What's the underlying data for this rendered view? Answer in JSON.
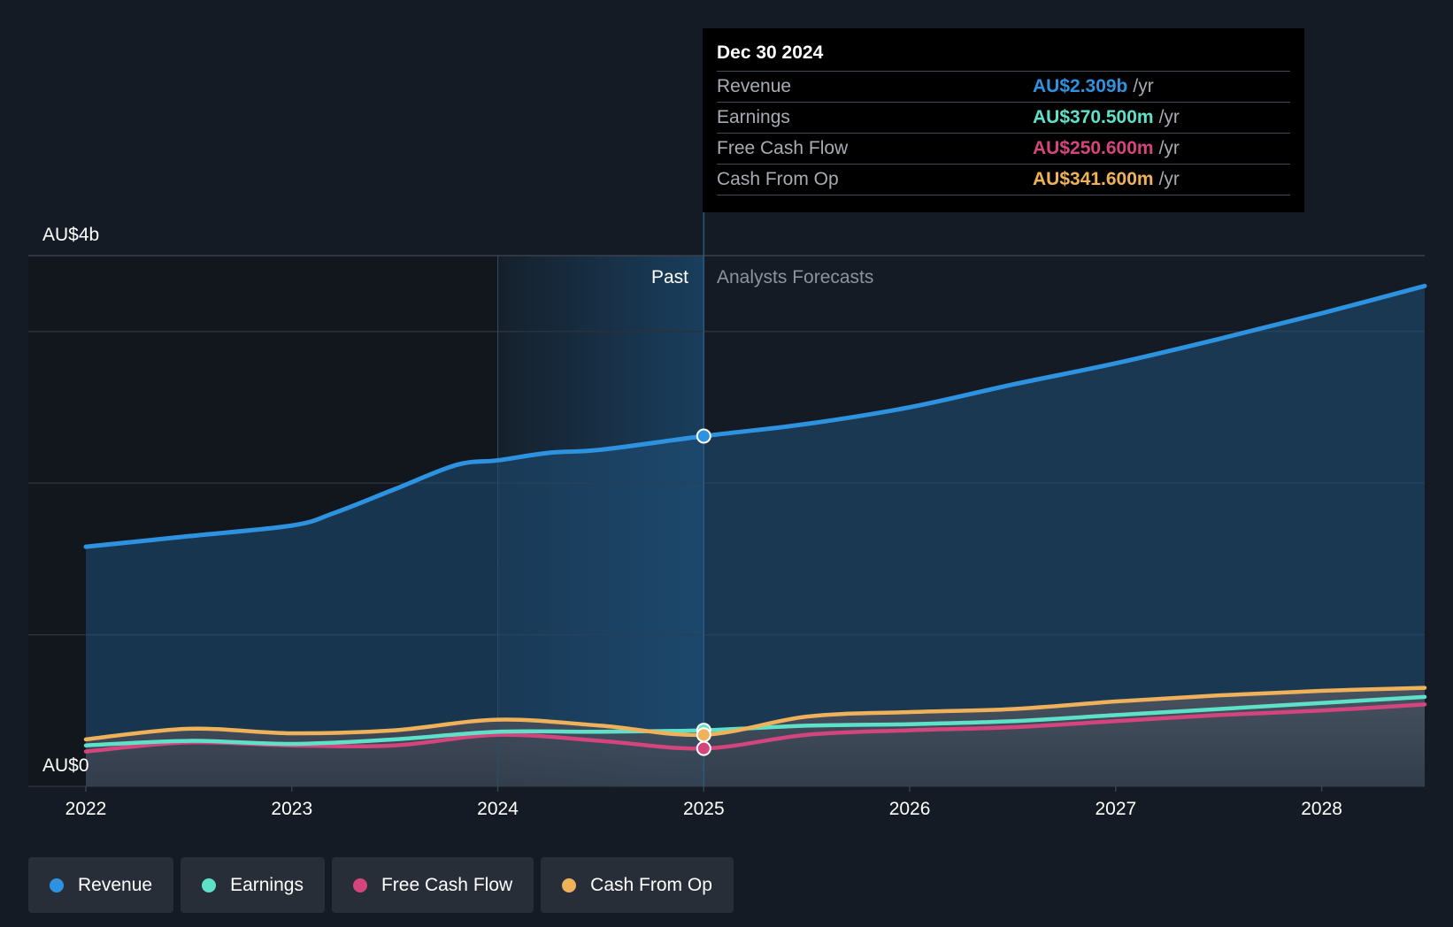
{
  "colors": {
    "revenue": "#2d93e0",
    "earnings": "#5fe1c9",
    "free_cash_flow": "#d3457c",
    "cash_from_op": "#efb25a"
  },
  "chart_data": {
    "type": "line",
    "x_label_ticks": [
      "2022",
      "2023",
      "2024",
      "2025",
      "2026",
      "2027",
      "2028"
    ],
    "y_axis_labels": [
      "AU$4b",
      "AU$0"
    ],
    "ylim": [
      0,
      3.5
    ],
    "xlim": [
      2022.0,
      2028.5
    ],
    "past_label": "Past",
    "forecast_label": "Analysts Forecasts",
    "divider_x": 2025.0,
    "series": [
      {
        "name": "Revenue",
        "key": "revenue",
        "x": [
          2022.0,
          2022.5,
          2023.0,
          2023.2,
          2023.5,
          2023.8,
          2024.0,
          2024.25,
          2024.5,
          2025.0,
          2025.5,
          2026.0,
          2026.5,
          2027.0,
          2027.5,
          2028.0,
          2028.5
        ],
        "values": [
          1.58,
          1.65,
          1.72,
          1.8,
          1.96,
          2.12,
          2.15,
          2.2,
          2.22,
          2.31,
          2.39,
          2.5,
          2.65,
          2.79,
          2.95,
          3.12,
          3.3
        ]
      },
      {
        "name": "Earnings",
        "key": "earnings",
        "x": [
          2022.0,
          2022.5,
          2023.0,
          2023.5,
          2024.0,
          2024.5,
          2025.0,
          2025.5,
          2026.0,
          2026.5,
          2027.0,
          2027.5,
          2028.0,
          2028.5
        ],
        "values": [
          0.27,
          0.3,
          0.28,
          0.31,
          0.36,
          0.36,
          0.37,
          0.4,
          0.41,
          0.43,
          0.47,
          0.51,
          0.55,
          0.59
        ]
      },
      {
        "name": "Free Cash Flow",
        "key": "free_cash_flow",
        "x": [
          2022.0,
          2022.5,
          2023.0,
          2023.5,
          2024.0,
          2024.5,
          2025.0,
          2025.5,
          2026.0,
          2026.5,
          2027.0,
          2027.5,
          2028.0,
          2028.5
        ],
        "values": [
          0.23,
          0.29,
          0.27,
          0.27,
          0.34,
          0.3,
          0.25,
          0.34,
          0.37,
          0.39,
          0.43,
          0.47,
          0.5,
          0.54
        ]
      },
      {
        "name": "Cash From Op",
        "key": "cash_from_op",
        "x": [
          2022.0,
          2022.5,
          2023.0,
          2023.5,
          2024.0,
          2024.5,
          2025.0,
          2025.5,
          2026.0,
          2026.5,
          2027.0,
          2027.5,
          2028.0,
          2028.5
        ],
        "values": [
          0.31,
          0.38,
          0.35,
          0.37,
          0.44,
          0.4,
          0.34,
          0.46,
          0.49,
          0.51,
          0.56,
          0.6,
          0.63,
          0.65
        ]
      }
    ],
    "highlight_x": 2025.0
  },
  "tooltip": {
    "date": "Dec 30 2024",
    "rows": [
      {
        "label": "Revenue",
        "value": "AU$2.309b",
        "unit": "/yr"
      },
      {
        "label": "Earnings",
        "value": "AU$370.500m",
        "unit": "/yr"
      },
      {
        "label": "Free Cash Flow",
        "value": "AU$250.600m",
        "unit": "/yr"
      },
      {
        "label": "Cash From Op",
        "value": "AU$341.600m",
        "unit": "/yr"
      }
    ]
  },
  "legend": [
    {
      "label": "Revenue"
    },
    {
      "label": "Earnings"
    },
    {
      "label": "Free Cash Flow"
    },
    {
      "label": "Cash From Op"
    }
  ]
}
